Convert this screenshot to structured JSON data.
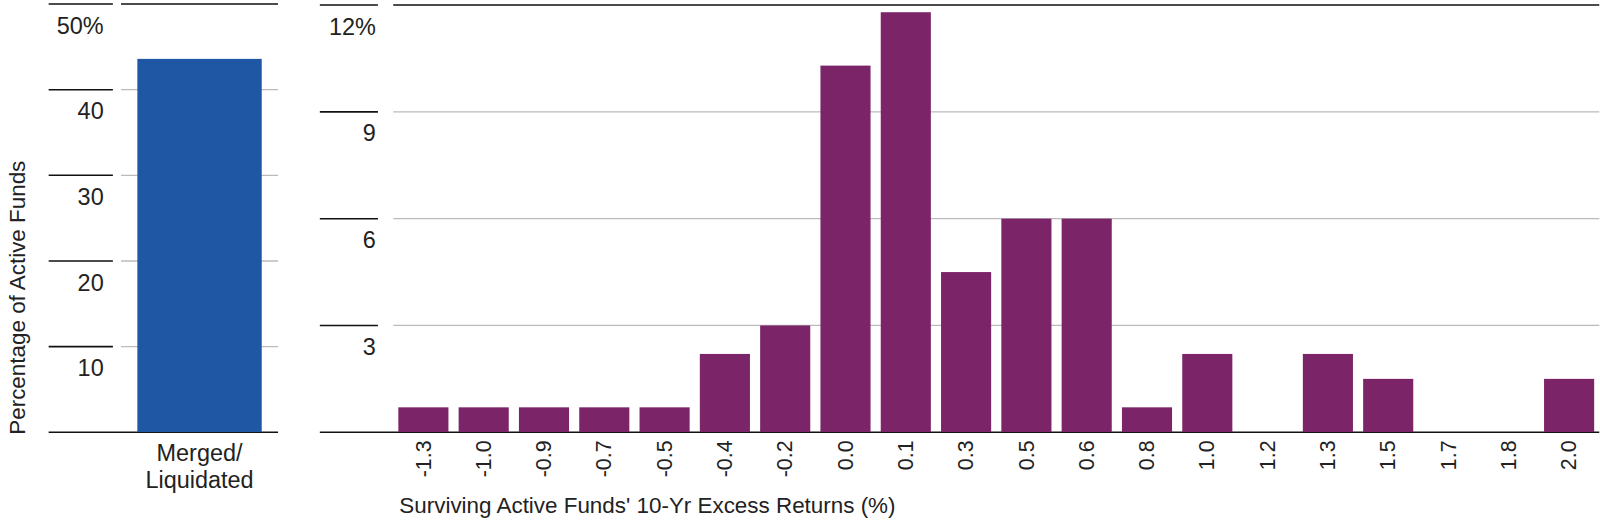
{
  "chart_data": [
    {
      "type": "bar",
      "ylabel": "Percentage of Active Funds",
      "categories": [
        "Merged/Liquidated"
      ],
      "values": [
        43.6
      ],
      "color": "#1f57a5",
      "ylim": [
        0,
        50
      ],
      "yticks": [
        10,
        20,
        30,
        40,
        {
          "value": 50,
          "label": "50%"
        }
      ],
      "grid": true
    },
    {
      "type": "bar",
      "xlabel": "Surviving Active Funds' 10-Yr Excess Returns (%)",
      "categories": [
        "-1.3",
        "-1.0",
        "-0.9",
        "-0.7",
        "-0.5",
        "-0.4",
        "-0.2",
        "0.0",
        "0.1",
        "0.3",
        "0.5",
        "0.6",
        "0.8",
        "1.0",
        "1.2",
        "1.3",
        "1.5",
        "1.7",
        "1.8",
        "2.0"
      ],
      "values": [
        0.7,
        0.7,
        0.7,
        0.7,
        0.7,
        2.2,
        3.0,
        10.3,
        11.8,
        4.5,
        6.0,
        6.0,
        0.7,
        2.2,
        0,
        2.2,
        1.5,
        0,
        0,
        1.5
      ],
      "color": "#7b2468",
      "ylim": [
        0,
        12
      ],
      "yticks": [
        3,
        6,
        9,
        {
          "value": 12,
          "label": "12%"
        }
      ],
      "grid": true
    }
  ]
}
